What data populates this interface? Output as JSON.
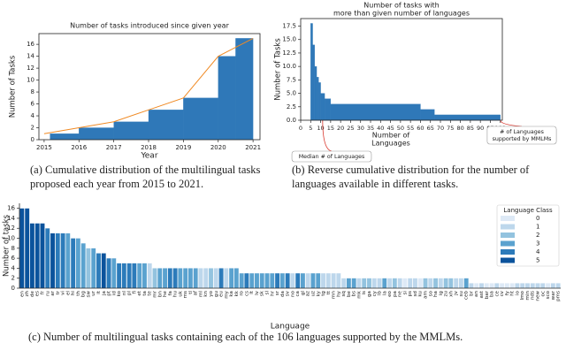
{
  "chart_data": [
    {
      "type": "histogram",
      "title": "Number of tasks introduced since given year",
      "xlabel": "Year",
      "ylabel": "Number of Tasks",
      "bins": [
        2015.17,
        2016,
        2017,
        2018,
        2019,
        2020,
        2020.5,
        2021
      ],
      "values": [
        1,
        2,
        3,
        5,
        7,
        14,
        17
      ],
      "color": "#2f78b8",
      "line": {
        "x": [
          2015,
          2016,
          2017,
          2018,
          2019,
          2020,
          2021
        ],
        "values": [
          1,
          2,
          3,
          5,
          7,
          14,
          17
        ],
        "color": "#f08a24"
      },
      "xlim": [
        2014.85,
        2021.2
      ],
      "xticks": [
        2015,
        2016,
        2017,
        2018,
        2019,
        2020,
        2021
      ],
      "ylim": [
        0,
        17.8
      ],
      "yticks": [
        0,
        2,
        4,
        6,
        8,
        10,
        12,
        14,
        16
      ],
      "caption": [
        "(a) Cumulative distribution of the multilingual tasks",
        "proposed each year from 2015 to 2021."
      ]
    },
    {
      "type": "histogram",
      "title": [
        "Number of tasks with",
        "more than given number of languages"
      ],
      "xlabel": [
        "Number of",
        "Languages"
      ],
      "ylabel": "Number of Tasks",
      "bins": [
        5,
        6,
        7,
        8,
        9,
        10,
        12,
        15,
        60,
        67,
        100
      ],
      "values": [
        18,
        14,
        10,
        8,
        7,
        5,
        4,
        3,
        2,
        1
      ],
      "color": "#2f78b8",
      "xlim": [
        0,
        101
      ],
      "xticks": [
        0,
        5,
        10,
        15,
        20,
        25,
        30,
        35,
        40,
        45,
        50,
        55,
        60,
        65,
        70,
        75,
        80,
        85,
        90,
        95,
        100
      ],
      "ylim": [
        0,
        18.9
      ],
      "yticks": [
        {
          "value": 0,
          "label": "0.0"
        },
        2.5,
        {
          "value": 5,
          "label": "5.0"
        },
        7.5,
        {
          "value": 10,
          "label": "10.0"
        },
        12.5,
        {
          "value": 15,
          "label": "15.0"
        },
        17.5
      ],
      "annotations": [
        {
          "text": [
            "Median # of Languages"
          ],
          "color": "#d9352b"
        },
        {
          "text": [
            "# of Languages",
            "supported by MMLMs"
          ],
          "color": "#d9352b"
        }
      ],
      "caption": [
        "(b) Reverse cumulative distribution for the number of",
        "languages available in different tasks."
      ]
    },
    {
      "type": "bar",
      "xlabel": "Language",
      "ylabel": "Number of tasks",
      "categories": [
        "en",
        "zh",
        "de",
        "es",
        "fr",
        "ru",
        "ar",
        "tr",
        "vi",
        "el",
        "hi",
        "th",
        "bg",
        "sw",
        "ur",
        "it",
        "ja",
        "pt",
        "id",
        "ko",
        "nl",
        "pl",
        "fi",
        "et",
        "ta",
        "te",
        "mr",
        "bn",
        "he",
        "fa",
        "hu",
        "uk",
        "ms",
        "tl",
        "af",
        "ml",
        "kn",
        "yo",
        "gu",
        "eu",
        "my",
        "ka",
        "kk",
        "ro",
        "cs",
        "lt",
        "lv",
        "sk",
        "sl",
        "hr",
        "sr",
        "da",
        "sv",
        "no",
        "ca",
        "gl",
        "az",
        "uz",
        "ky",
        "tg",
        "tt",
        "mn",
        "hy",
        "sq",
        "be",
        "bs",
        "mk",
        "is",
        "ga",
        "cy",
        "lb",
        "la",
        "eo",
        "pa",
        "ne",
        "si",
        "ps",
        "sd",
        "ku",
        "am",
        "so",
        "ha",
        "ig",
        "zu",
        "xh",
        "jv",
        "su",
        "ceb",
        "br",
        "an",
        "ast",
        "bar",
        "ba",
        "ce",
        "cv",
        "fy",
        "ht",
        "io",
        "lmo",
        "min",
        "nds",
        "new",
        "oc",
        "sco",
        "war",
        "pms"
      ],
      "values": [
        16,
        16,
        13,
        13,
        13,
        12,
        11,
        11,
        11,
        11,
        10,
        10,
        9,
        8,
        8,
        7,
        7,
        6,
        6,
        5,
        5,
        5,
        5,
        5,
        5,
        5,
        4,
        4,
        4,
        4,
        4,
        4,
        4,
        4,
        4,
        4,
        4,
        4,
        4,
        4,
        4,
        4,
        4,
        3,
        3,
        3,
        3,
        3,
        3,
        3,
        3,
        3,
        3,
        3,
        3,
        3,
        3,
        3,
        3,
        3,
        3,
        3,
        3,
        2,
        2,
        2,
        2,
        2,
        2,
        2,
        2,
        2,
        2,
        2,
        2,
        2,
        2,
        2,
        2,
        2,
        2,
        2,
        2,
        2,
        2,
        2,
        2,
        2,
        1,
        1,
        1,
        1,
        1,
        1,
        1,
        1,
        1,
        1,
        1,
        1,
        1,
        1,
        1,
        1,
        1,
        1
      ],
      "classes": [
        5,
        5,
        5,
        5,
        5,
        4,
        5,
        4,
        4,
        3,
        4,
        3,
        3,
        2,
        3,
        4,
        5,
        4,
        3,
        4,
        4,
        4,
        4,
        3,
        3,
        1,
        2,
        3,
        3,
        4,
        4,
        3,
        3,
        3,
        3,
        1,
        1,
        2,
        1,
        4,
        1,
        3,
        3,
        3,
        4,
        3,
        3,
        3,
        3,
        3,
        4,
        3,
        4,
        1,
        4,
        3,
        1,
        3,
        3,
        1,
        1,
        1,
        1,
        1,
        3,
        3,
        1,
        2,
        2,
        1,
        1,
        3,
        1,
        2,
        1,
        0,
        1,
        1,
        0,
        2,
        1,
        2,
        1,
        2,
        2,
        1,
        1,
        3,
        1,
        0,
        1,
        0,
        0,
        1,
        0,
        0,
        0,
        1,
        1,
        1,
        1,
        1,
        1,
        0,
        1,
        1
      ],
      "legend": {
        "title": "Language Class",
        "classes": [
          0,
          1,
          2,
          3,
          4,
          5
        ],
        "colors": [
          "#dde9f6",
          "#bdd7ec",
          "#93c3df",
          "#5aa2cf",
          "#2c7bba",
          "#0b539c"
        ],
        "position": "upper right"
      },
      "ylim": [
        0,
        17
      ],
      "yticks": [
        0,
        2,
        4,
        6,
        8,
        10,
        12,
        14,
        16
      ],
      "caption": "(c) Number of multilingual tasks containing each of the 106 languages supported by the MMLMs."
    }
  ]
}
